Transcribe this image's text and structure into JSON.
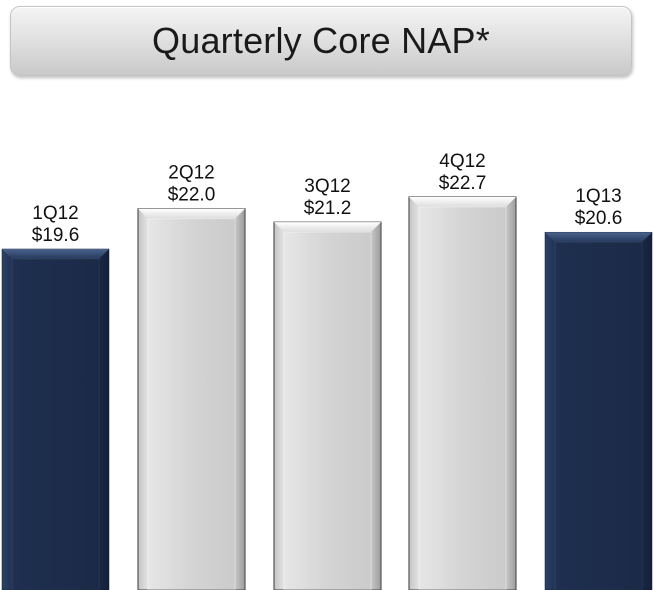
{
  "chart_data": {
    "type": "bar",
    "title": "Quarterly Core NAP*",
    "categories": [
      "1Q12",
      "2Q12",
      "3Q12",
      "4Q12",
      "1Q13"
    ],
    "values": [
      19.6,
      22.0,
      21.2,
      22.7,
      20.6
    ],
    "value_labels": [
      "$19.6",
      "$22.0",
      "$21.2",
      "$22.7",
      "$20.6"
    ],
    "ylim": [
      0,
      23.3
    ],
    "grid": false,
    "legend": "none",
    "colors": {
      "highlight": "#1e2f4f",
      "highlight_light": "#33486e",
      "default": "#d6d6d6",
      "default_light": "#f4f4f4"
    },
    "highlighted": [
      true,
      false,
      false,
      false,
      true
    ]
  }
}
